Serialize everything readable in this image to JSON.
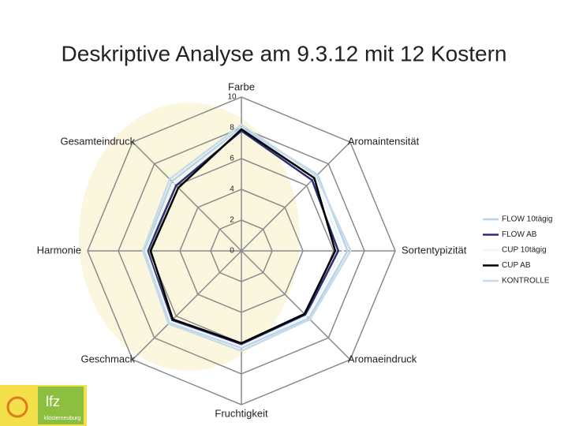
{
  "chart_data": {
    "type": "radar",
    "title": "Deskriptive Analyse am 9.3.12 mit 12 Kostern",
    "categories": [
      "Farbe",
      "Aromaintensität",
      "Sortentypizität",
      "Aromaeindruck",
      "Fruchtigkeit",
      "Geschmack",
      "Harmonie",
      "Gesamteindruck"
    ],
    "rlim": [
      0,
      10
    ],
    "rticks": [
      0,
      2,
      4,
      6,
      8,
      10
    ],
    "grid": true,
    "legend": "right",
    "series": [
      {
        "name": "FLOW 10tägig",
        "color": "#b7d3ea",
        "values": [
          8.0,
          7.0,
          6.9,
          6.2,
          6.3,
          6.6,
          6.3,
          6.4
        ]
      },
      {
        "name": "FLOW AB",
        "color": "#2b2f7a",
        "values": [
          7.8,
          6.5,
          6.3,
          5.9,
          6.1,
          6.4,
          6.1,
          6.0
        ]
      },
      {
        "name": "CUP 10tägig",
        "color": "#eef3f8",
        "values": [
          7.9,
          6.8,
          6.6,
          6.0,
          6.2,
          6.5,
          6.2,
          6.2
        ]
      },
      {
        "name": "CUP AB",
        "color": "#000000",
        "values": [
          7.9,
          6.7,
          6.1,
          5.8,
          6.0,
          6.3,
          5.9,
          5.8
        ]
      },
      {
        "name": "KONTROLLE",
        "color": "#c9dbe8",
        "values": [
          8.2,
          6.9,
          7.1,
          6.3,
          6.5,
          6.7,
          6.4,
          6.6
        ]
      }
    ]
  },
  "footer": {
    "logo_text": "lfz",
    "logo_subtext": "klosterneuburg"
  }
}
